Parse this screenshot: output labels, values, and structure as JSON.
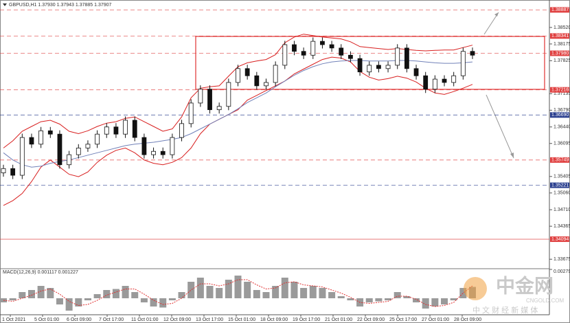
{
  "chart_data": {
    "type": "candlestick",
    "title": "GBPUSD,H1 1.37930 1.37943 1.37885 1.37907",
    "x_labels": [
      "1 Oct 2021",
      "5 Oct 01:00",
      "6 Oct 09:00",
      "7 Oct 17:00",
      "11 Oct 01:00",
      "12 Oct 09:00",
      "13 Oct 17:00",
      "15 Oct 01:00",
      "18 Oct 09:00",
      "19 Oct 17:00",
      "21 Oct 01:00",
      "22 Oct 09:00",
      "25 Oct 17:00",
      "27 Oct 01:00",
      "28 Oct 09:00"
    ],
    "open": [
      1.3548,
      1.3557,
      1.3543,
      1.3622,
      1.3608,
      1.3636,
      1.3629,
      1.3565,
      1.3586,
      1.36,
      1.3608,
      1.3629,
      1.3644,
      1.3629,
      1.3658,
      1.3622,
      1.3586,
      1.3593,
      1.3586,
      1.3622,
      1.3651,
      1.3694,
      1.3723,
      1.368,
      1.3687,
      1.3737,
      1.3766,
      1.3751,
      1.373,
      1.3737,
      1.3773,
      1.3816,
      1.3802,
      1.3794,
      1.3823,
      1.3816,
      1.3809,
      1.3794,
      1.3787,
      1.3759,
      1.3773,
      1.3766,
      1.3773,
      1.3809,
      1.3766,
      1.3751,
      1.3723,
      1.3744,
      1.3737,
      1.3751,
      1.3802
    ],
    "high": [
      1.3565,
      1.3565,
      1.363,
      1.363,
      1.3644,
      1.3644,
      1.3637,
      1.3594,
      1.3608,
      1.3616,
      1.3637,
      1.3652,
      1.3652,
      1.3666,
      1.3666,
      1.363,
      1.3601,
      1.3601,
      1.363,
      1.3659,
      1.3702,
      1.3731,
      1.3731,
      1.3695,
      1.3745,
      1.3774,
      1.3774,
      1.3759,
      1.3745,
      1.3781,
      1.3824,
      1.3824,
      1.381,
      1.3831,
      1.3831,
      1.3824,
      1.3817,
      1.3802,
      1.3795,
      1.3781,
      1.3781,
      1.3781,
      1.3817,
      1.3817,
      1.3774,
      1.3759,
      1.3752,
      1.3752,
      1.3759,
      1.381,
      1.381
    ],
    "low": [
      1.354,
      1.3535,
      1.3535,
      1.36,
      1.36,
      1.3621,
      1.3557,
      1.3557,
      1.3578,
      1.3592,
      1.36,
      1.3621,
      1.3621,
      1.3621,
      1.3614,
      1.3578,
      1.3578,
      1.3578,
      1.3578,
      1.3614,
      1.3643,
      1.3686,
      1.3672,
      1.3672,
      1.3679,
      1.3729,
      1.3743,
      1.3722,
      1.3722,
      1.3729,
      1.3765,
      1.3794,
      1.3786,
      1.3786,
      1.3808,
      1.3801,
      1.3786,
      1.3779,
      1.3751,
      1.3751,
      1.3758,
      1.3758,
      1.3765,
      1.3758,
      1.3743,
      1.3715,
      1.3715,
      1.3729,
      1.3729,
      1.3743,
      1.3786
    ],
    "close": [
      1.3557,
      1.3543,
      1.3622,
      1.3608,
      1.3636,
      1.3629,
      1.3565,
      1.3586,
      1.36,
      1.3608,
      1.3629,
      1.3644,
      1.3629,
      1.3658,
      1.3622,
      1.3586,
      1.3593,
      1.3586,
      1.3622,
      1.3651,
      1.3694,
      1.3723,
      1.368,
      1.3687,
      1.3737,
      1.3766,
      1.3751,
      1.373,
      1.3737,
      1.3773,
      1.3816,
      1.3802,
      1.3794,
      1.3823,
      1.3816,
      1.3809,
      1.3794,
      1.3787,
      1.3759,
      1.3773,
      1.3766,
      1.3773,
      1.3809,
      1.3766,
      1.3751,
      1.3723,
      1.3744,
      1.3737,
      1.3751,
      1.3802,
      1.3794
    ],
    "bands": [
      {
        "color": "#d81e1e",
        "values": [
          1.36,
          1.3615,
          1.3635,
          1.3645,
          1.3655,
          1.3658,
          1.365,
          1.3635,
          1.363,
          1.3636,
          1.3645,
          1.3652,
          1.3655,
          1.3662,
          1.3665,
          1.3655,
          1.3645,
          1.3635,
          1.364,
          1.3665,
          1.3705,
          1.3725,
          1.3728,
          1.373,
          1.375,
          1.377,
          1.3778,
          1.3782,
          1.3785,
          1.3795,
          1.382,
          1.3832,
          1.3838,
          1.3835,
          1.3832,
          1.383,
          1.3828,
          1.3822,
          1.3812,
          1.381,
          1.3808,
          1.3806,
          1.3808,
          1.3806,
          1.3804,
          1.3803,
          1.3804,
          1.3805,
          1.3805,
          1.381,
          1.3815
        ]
      },
      {
        "color": "#d81e1e",
        "values": [
          1.348,
          1.349,
          1.3505,
          1.353,
          1.356,
          1.3575,
          1.356,
          1.3545,
          1.354,
          1.355,
          1.357,
          1.3585,
          1.3595,
          1.36,
          1.359,
          1.3575,
          1.3568,
          1.3565,
          1.357,
          1.358,
          1.36,
          1.363,
          1.365,
          1.366,
          1.367,
          1.368,
          1.37,
          1.371,
          1.372,
          1.373,
          1.374,
          1.3755,
          1.3765,
          1.3775,
          1.3785,
          1.379,
          1.3788,
          1.378,
          1.376,
          1.3748,
          1.3742,
          1.3745,
          1.375,
          1.3746,
          1.3738,
          1.3725,
          1.3715,
          1.3712,
          1.3718,
          1.3725,
          1.3733
        ]
      },
      {
        "color": "#7080b8",
        "values": [
          1.359,
          1.3575,
          1.3565,
          1.356,
          1.3562,
          1.3568,
          1.3572,
          1.3575,
          1.358,
          1.3585,
          1.359,
          1.3595,
          1.36,
          1.3605,
          1.3608,
          1.361,
          1.3612,
          1.3615,
          1.3618,
          1.3622,
          1.363,
          1.364,
          1.365,
          1.366,
          1.367,
          1.3682,
          1.3695,
          1.3705,
          1.3715,
          1.3728,
          1.374,
          1.3752,
          1.3762,
          1.377,
          1.3776,
          1.378,
          1.3782,
          1.3783,
          1.3783,
          1.3782,
          1.3782,
          1.3782,
          1.3783,
          1.3783,
          1.3782,
          1.378,
          1.3778,
          1.3777,
          1.3777,
          1.3778,
          1.378
        ]
      }
    ],
    "ylim": [
      1.3352,
      1.3895
    ],
    "yticks": [
      {
        "value": 1.3852,
        "label": "1.38520"
      },
      {
        "value": 1.38175,
        "label": "1.38175"
      },
      {
        "value": 1.37825,
        "label": "1.37825"
      },
      {
        "value": 1.37135,
        "label": "1.37135"
      },
      {
        "value": 1.3679,
        "label": "1.36790"
      },
      {
        "value": 1.3644,
        "label": "1.36440"
      },
      {
        "value": 1.36095,
        "label": "1.36095"
      },
      {
        "value": 1.35405,
        "label": "1.35405"
      },
      {
        "value": 1.3506,
        "label": "1.35060"
      },
      {
        "value": 1.3471,
        "label": "1.34710"
      },
      {
        "value": 1.34365,
        "label": "1.34365"
      },
      {
        "value": 1.33675,
        "label": "1.33675"
      }
    ],
    "levels": [
      {
        "value": 1.38887,
        "label": "1.38887",
        "color": "#e04040"
      },
      {
        "value": 1.38341,
        "label": "1.38341",
        "color": "#e04040"
      },
      {
        "value": 1.3798,
        "label": "1.37980",
        "color": "#e04040"
      },
      {
        "value": 1.37216,
        "label": "1.37216",
        "color": "#e04040"
      },
      {
        "value": 1.3669,
        "label": "1.36690",
        "color": "#2a3f8f"
      },
      {
        "value": 1.35749,
        "label": "1.35749",
        "color": "#e04040"
      },
      {
        "value": 1.35221,
        "label": "1.35221",
        "color": "#2a3f8f"
      },
      {
        "value": 1.34094,
        "label": "1.34094",
        "color": "#e04040"
      }
    ],
    "macd": {
      "title": "MACD(12,26,9) 0.001117 0.001227",
      "ylim": [
        -0.0016,
        0.0028
      ],
      "yticks": [
        0.002799
      ],
      "histogram": [
        -0.0004,
        -0.0002,
        0.0006,
        0.0008,
        0.0012,
        0.001,
        -0.0006,
        -0.0012,
        -0.0008,
        -0.0002,
        0.0004,
        0.0008,
        0.0009,
        0.0012,
        0.0006,
        -0.0004,
        -0.0008,
        -0.0009,
        -0.0002,
        0.0006,
        0.0016,
        0.002,
        0.0012,
        0.001,
        0.0018,
        0.0022,
        0.0016,
        0.0008,
        0.0006,
        0.0012,
        0.002,
        0.0016,
        0.001,
        0.0012,
        0.001,
        0.0006,
        0.0002,
        -0.0002,
        -0.0008,
        -0.0004,
        -0.0003,
        -0.0002,
        0.0006,
        0.0002,
        -0.0004,
        -0.001,
        -0.0008,
        -0.0006,
        -0.0002,
        0.001,
        0.0011
      ],
      "signal": [
        -0.0002,
        -0.0003,
        0.0,
        0.0003,
        0.0007,
        0.0009,
        0.0004,
        -0.0003,
        -0.0007,
        -0.0006,
        -0.0002,
        0.0003,
        0.0006,
        0.0009,
        0.0009,
        0.0004,
        -0.0002,
        -0.0006,
        -0.0005,
        0.0,
        0.0008,
        0.0014,
        0.0014,
        0.0012,
        0.0014,
        0.0018,
        0.0018,
        0.0013,
        0.0009,
        0.001,
        0.0015,
        0.0016,
        0.0013,
        0.0012,
        0.0011,
        0.0008,
        0.0005,
        0.0001,
        -0.0004,
        -0.0005,
        -0.0004,
        -0.0003,
        0.0002,
        0.0002,
        -0.0001,
        -0.0006,
        -0.0008,
        -0.0007,
        -0.0004,
        0.0005,
        0.0012
      ]
    }
  },
  "watermark": {
    "logo": "中金网",
    "site": "CNGOLD.COM",
    "slogan": "中 文 财 经 新 媒 体"
  }
}
